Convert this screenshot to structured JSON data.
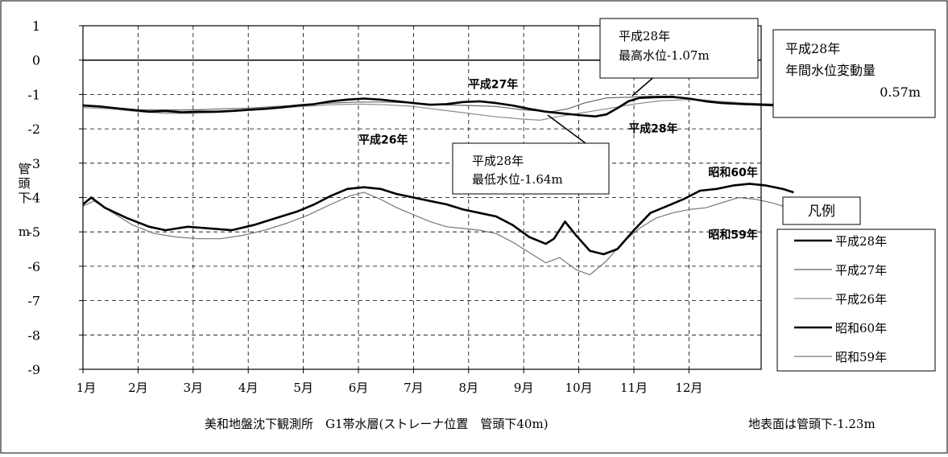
{
  "chart_data": {
    "type": "line",
    "y_axis_label_chars": [
      "管",
      "頭",
      "下"
    ],
    "y_unit": "m",
    "ylim": [
      -9,
      1
    ],
    "yticks": [
      "1",
      "0",
      "-1",
      "-2",
      "-3",
      "-4",
      "-5",
      "-6",
      "-7",
      "-8",
      "-9"
    ],
    "x_tick_labels": [
      "1月",
      "2月",
      "3月",
      "4月",
      "5月",
      "6月",
      "7月",
      "8月",
      "9月",
      "10月",
      "11月",
      "12月"
    ],
    "grid": true,
    "legend_title": "凡例",
    "legend_position": "right",
    "series": [
      {
        "name": "平成28年",
        "color": "#000000",
        "width": 2.6,
        "values": [
          [
            0,
            -1.32
          ],
          [
            0.3,
            -1.35
          ],
          [
            0.6,
            -1.4
          ],
          [
            0.9,
            -1.45
          ],
          [
            1.2,
            -1.5
          ],
          [
            1.5,
            -1.48
          ],
          [
            1.8,
            -1.52
          ],
          [
            2.1,
            -1.5
          ],
          [
            2.4,
            -1.5
          ],
          [
            2.7,
            -1.48
          ],
          [
            3,
            -1.45
          ],
          [
            3.3,
            -1.42
          ],
          [
            3.6,
            -1.38
          ],
          [
            3.9,
            -1.32
          ],
          [
            4.2,
            -1.28
          ],
          [
            4.5,
            -1.2
          ],
          [
            4.8,
            -1.15
          ],
          [
            5.1,
            -1.12
          ],
          [
            5.4,
            -1.15
          ],
          [
            5.7,
            -1.2
          ],
          [
            6,
            -1.25
          ],
          [
            6.3,
            -1.3
          ],
          [
            6.6,
            -1.28
          ],
          [
            6.9,
            -1.22
          ],
          [
            7.2,
            -1.2
          ],
          [
            7.5,
            -1.25
          ],
          [
            7.8,
            -1.32
          ],
          [
            8.1,
            -1.42
          ],
          [
            8.4,
            -1.5
          ],
          [
            8.7,
            -1.55
          ],
          [
            9,
            -1.6
          ],
          [
            9.3,
            -1.64
          ],
          [
            9.5,
            -1.58
          ],
          [
            9.7,
            -1.4
          ],
          [
            9.9,
            -1.2
          ],
          [
            10.1,
            -1.1
          ],
          [
            10.4,
            -1.08
          ],
          [
            10.7,
            -1.07
          ],
          [
            11,
            -1.12
          ],
          [
            11.3,
            -1.2
          ],
          [
            11.6,
            -1.25
          ],
          [
            12,
            -1.28
          ],
          [
            12.3,
            -1.3
          ],
          [
            12.6,
            -1.32
          ],
          [
            12.9,
            -1.3
          ]
        ]
      },
      {
        "name": "平成27年",
        "color": "#666666",
        "width": 1.2,
        "values": [
          [
            0,
            -1.3
          ],
          [
            0.5,
            -1.38
          ],
          [
            1,
            -1.45
          ],
          [
            1.5,
            -1.45
          ],
          [
            2,
            -1.45
          ],
          [
            2.5,
            -1.42
          ],
          [
            3,
            -1.4
          ],
          [
            3.5,
            -1.35
          ],
          [
            4,
            -1.3
          ],
          [
            4.5,
            -1.25
          ],
          [
            5,
            -1.22
          ],
          [
            5.5,
            -1.22
          ],
          [
            6,
            -1.25
          ],
          [
            6.5,
            -1.3
          ],
          [
            7,
            -1.32
          ],
          [
            7.5,
            -1.35
          ],
          [
            8,
            -1.45
          ],
          [
            8.5,
            -1.5
          ],
          [
            8.8,
            -1.42
          ],
          [
            9.1,
            -1.25
          ],
          [
            9.5,
            -1.1
          ],
          [
            9.9,
            -1.08
          ],
          [
            10.3,
            -1.05
          ],
          [
            10.7,
            -1.05
          ],
          [
            11,
            -1.12
          ],
          [
            11.5,
            -1.2
          ],
          [
            12,
            -1.25
          ],
          [
            12.5,
            -1.28
          ],
          [
            12.9,
            -1.28
          ]
        ]
      },
      {
        "name": "平成26年",
        "color": "#8c8c8c",
        "width": 1.2,
        "values": [
          [
            0,
            -1.38
          ],
          [
            0.5,
            -1.42
          ],
          [
            1,
            -1.5
          ],
          [
            1.5,
            -1.55
          ],
          [
            2,
            -1.55
          ],
          [
            2.5,
            -1.52
          ],
          [
            3,
            -1.45
          ],
          [
            3.5,
            -1.4
          ],
          [
            4,
            -1.35
          ],
          [
            4.5,
            -1.3
          ],
          [
            5,
            -1.28
          ],
          [
            5.5,
            -1.3
          ],
          [
            6,
            -1.35
          ],
          [
            6.5,
            -1.45
          ],
          [
            7,
            -1.55
          ],
          [
            7.5,
            -1.65
          ],
          [
            8,
            -1.72
          ],
          [
            8.3,
            -1.75
          ],
          [
            8.6,
            -1.65
          ],
          [
            9,
            -1.55
          ],
          [
            9.5,
            -1.42
          ],
          [
            10,
            -1.28
          ],
          [
            10.5,
            -1.18
          ],
          [
            11,
            -1.15
          ],
          [
            11.5,
            -1.2
          ],
          [
            12,
            -1.25
          ],
          [
            12.5,
            -1.32
          ],
          [
            12.9,
            -1.3
          ]
        ]
      },
      {
        "name": "昭和60年",
        "color": "#000000",
        "width": 2.6,
        "values": [
          [
            0,
            -4.2
          ],
          [
            0.15,
            -4.0
          ],
          [
            0.4,
            -4.3
          ],
          [
            0.8,
            -4.6
          ],
          [
            1.2,
            -4.85
          ],
          [
            1.5,
            -4.95
          ],
          [
            1.9,
            -4.85
          ],
          [
            2.3,
            -4.9
          ],
          [
            2.7,
            -4.95
          ],
          [
            3.1,
            -4.8
          ],
          [
            3.5,
            -4.6
          ],
          [
            3.9,
            -4.4
          ],
          [
            4.2,
            -4.2
          ],
          [
            4.5,
            -3.95
          ],
          [
            4.8,
            -3.75
          ],
          [
            5.1,
            -3.7
          ],
          [
            5.4,
            -3.75
          ],
          [
            5.7,
            -3.9
          ],
          [
            6,
            -4.0
          ],
          [
            6.3,
            -4.1
          ],
          [
            6.6,
            -4.2
          ],
          [
            6.9,
            -4.35
          ],
          [
            7.2,
            -4.45
          ],
          [
            7.5,
            -4.55
          ],
          [
            7.8,
            -4.8
          ],
          [
            8.1,
            -5.15
          ],
          [
            8.4,
            -5.35
          ],
          [
            8.55,
            -5.2
          ],
          [
            8.75,
            -4.7
          ],
          [
            8.95,
            -5.1
          ],
          [
            9.2,
            -5.55
          ],
          [
            9.45,
            -5.65
          ],
          [
            9.7,
            -5.5
          ],
          [
            10,
            -4.95
          ],
          [
            10.3,
            -4.45
          ],
          [
            10.6,
            -4.25
          ],
          [
            10.9,
            -4.05
          ],
          [
            11.2,
            -3.8
          ],
          [
            11.5,
            -3.75
          ],
          [
            11.8,
            -3.65
          ],
          [
            12.1,
            -3.6
          ],
          [
            12.4,
            -3.65
          ],
          [
            12.7,
            -3.75
          ],
          [
            12.9,
            -3.85
          ]
        ]
      },
      {
        "name": "昭和59年",
        "color": "#777777",
        "width": 1.2,
        "values": [
          [
            0,
            -4.25
          ],
          [
            0.2,
            -4.1
          ],
          [
            0.5,
            -4.4
          ],
          [
            0.9,
            -4.8
          ],
          [
            1.3,
            -5.05
          ],
          [
            1.7,
            -5.15
          ],
          [
            2.1,
            -5.2
          ],
          [
            2.5,
            -5.2
          ],
          [
            2.9,
            -5.1
          ],
          [
            3.3,
            -4.95
          ],
          [
            3.7,
            -4.75
          ],
          [
            4.1,
            -4.5
          ],
          [
            4.5,
            -4.2
          ],
          [
            4.85,
            -3.95
          ],
          [
            5.1,
            -3.85
          ],
          [
            5.4,
            -4.05
          ],
          [
            5.7,
            -4.3
          ],
          [
            6,
            -4.5
          ],
          [
            6.3,
            -4.7
          ],
          [
            6.6,
            -4.85
          ],
          [
            6.9,
            -4.9
          ],
          [
            7.2,
            -4.95
          ],
          [
            7.5,
            -5.05
          ],
          [
            7.8,
            -5.3
          ],
          [
            8.1,
            -5.6
          ],
          [
            8.4,
            -5.9
          ],
          [
            8.65,
            -5.75
          ],
          [
            8.95,
            -6.1
          ],
          [
            9.2,
            -6.25
          ],
          [
            9.5,
            -5.85
          ],
          [
            9.8,
            -5.3
          ],
          [
            10.1,
            -4.9
          ],
          [
            10.4,
            -4.6
          ],
          [
            10.7,
            -4.45
          ],
          [
            11,
            -4.35
          ],
          [
            11.3,
            -4.3
          ],
          [
            11.6,
            -4.15
          ],
          [
            11.9,
            -4.0
          ],
          [
            12.2,
            -4.05
          ],
          [
            12.5,
            -4.15
          ],
          [
            12.9,
            -4.35
          ]
        ]
      }
    ],
    "series_labels": [
      {
        "text": "平成27年",
        "x": 7.45,
        "y": -0.82
      },
      {
        "text": "平成26年",
        "x": 5.45,
        "y": -2.43
      },
      {
        "text": "平成28年",
        "x": 10.35,
        "y": -2.1
      },
      {
        "text": "昭和60年",
        "x": 11.8,
        "y": -3.38
      },
      {
        "text": "昭和59年",
        "x": 11.8,
        "y": -5.2
      }
    ],
    "annotations": {
      "max_title": "平成28年",
      "max_text": "最高水位-1.07m",
      "min_title": "平成28年",
      "min_text": "最低水位-1.64m"
    }
  },
  "info_box": {
    "line1": "平成28年",
    "line2": "年間水位変動量",
    "line3": "0.57m"
  },
  "footer": {
    "caption": "美和地盤沈下観測所　G1帯水層(ストレーナ位置　管頭下40m)",
    "note": "地表面は管頭下-1.23m"
  }
}
